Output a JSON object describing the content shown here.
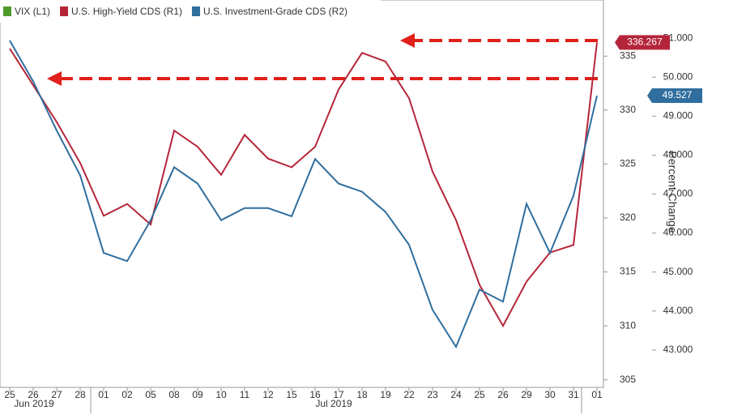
{
  "chart_data": {
    "type": "line",
    "categories": [
      "25",
      "26",
      "27",
      "28",
      "01",
      "02",
      "05",
      "08",
      "09",
      "10",
      "11",
      "12",
      "15",
      "16",
      "17",
      "18",
      "19",
      "22",
      "23",
      "24",
      "25",
      "26",
      "29",
      "30",
      "31",
      "01"
    ],
    "month_labels": [
      "Jun 2019",
      "Jul 2019"
    ],
    "y2_label": "Percent Change",
    "series": [
      {
        "name": "VIX (L1)",
        "color": "#4e9a2a",
        "values": [
          null,
          null,
          null,
          null,
          null,
          null,
          null,
          null,
          null,
          null,
          null,
          null,
          null,
          null,
          null,
          null,
          null,
          null,
          null,
          null,
          null,
          null,
          null,
          null,
          null,
          null
        ]
      },
      {
        "name": "U.S. High-Yield CDS (R1)",
        "color": "#b5253a",
        "axis": "y",
        "values": [
          335.7,
          332.3,
          328.9,
          325.1,
          320.2,
          321.3,
          319.4,
          328.1,
          326.6,
          324.0,
          327.7,
          325.5,
          324.7,
          326.6,
          331.9,
          335.3,
          334.5,
          331.1,
          324.3,
          319.8,
          313.8,
          310.0,
          314.1,
          316.8,
          317.5,
          336.267
        ],
        "value_labels": [
          null,
          null,
          null,
          null,
          null,
          null,
          null,
          null,
          null,
          null,
          null,
          null,
          null,
          null,
          null,
          null,
          null,
          null,
          null,
          null,
          null,
          null,
          null,
          null,
          null,
          "336.267"
        ]
      },
      {
        "name": "U.S. Investment-Grade CDS (R2)",
        "color": "#2f6e9e",
        "axis": "y2",
        "values": [
          50.94,
          49.89,
          48.63,
          47.48,
          45.49,
          45.28,
          46.33,
          47.69,
          47.27,
          46.33,
          46.64,
          46.64,
          46.43,
          47.9,
          47.27,
          47.06,
          46.54,
          45.7,
          44.03,
          43.08,
          44.55,
          44.24,
          46.75,
          45.49,
          46.96,
          49.527
        ],
        "value_labels": [
          null,
          null,
          null,
          null,
          null,
          null,
          null,
          null,
          null,
          null,
          null,
          null,
          null,
          null,
          null,
          null,
          null,
          null,
          null,
          null,
          null,
          null,
          null,
          null,
          null,
          "49.527"
        ]
      }
    ],
    "ylim": [
      304.3,
      340.2
    ],
    "yticks": [
      305,
      310,
      315,
      320,
      325,
      330,
      335
    ],
    "y2lim": [
      42.04,
      51.98
    ],
    "y2ticks": [
      {
        "value": 43,
        "label": "43.000"
      },
      {
        "value": 44,
        "label": "44.000"
      },
      {
        "value": 45,
        "label": "45.000"
      },
      {
        "value": 46,
        "label": "46.000"
      },
      {
        "value": 47,
        "label": "47.000"
      },
      {
        "value": 48,
        "label": "48.000"
      },
      {
        "value": 49,
        "label": "49.000"
      },
      {
        "value": 50,
        "label": "50.000"
      },
      {
        "value": 51,
        "label": "51.000"
      }
    ]
  }
}
